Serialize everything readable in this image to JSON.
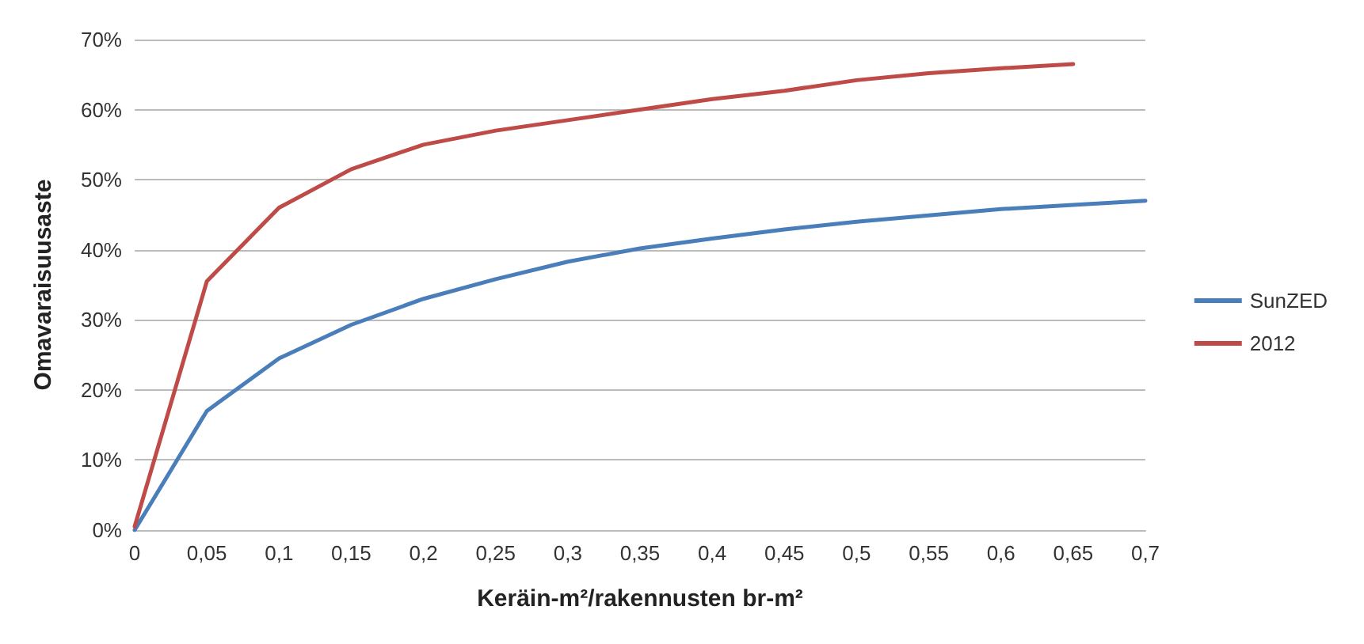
{
  "chart_data": {
    "type": "line",
    "xlabel": "Keräin-m²/rakennusten br-m²",
    "ylabel": "Omavaraisuusaste",
    "categories": [
      "0",
      "0,05",
      "0,1",
      "0,15",
      "0,2",
      "0,25",
      "0,3",
      "0,35",
      "0,4",
      "0,45",
      "0,5",
      "0,55",
      "0,6",
      "0,65",
      "0,7"
    ],
    "series": [
      {
        "name": "SunZED",
        "color": "#4a7ebb",
        "values": [
          0,
          17,
          24.5,
          29.3,
          33,
          35.8,
          38.3,
          40.2,
          41.6,
          42.9,
          44,
          44.9,
          45.8,
          46.4,
          47
        ]
      },
      {
        "name": "2012",
        "color": "#be4b48",
        "values": [
          0.5,
          35.5,
          46,
          51.5,
          55,
          57,
          58.5,
          60,
          61.5,
          62.7,
          64.2,
          65.2,
          65.9,
          66.5,
          null
        ]
      }
    ],
    "ylim": [
      0,
      70
    ],
    "yticks": [
      {
        "value": 0,
        "label": "0%"
      },
      {
        "value": 10,
        "label": "10%"
      },
      {
        "value": 20,
        "label": "20%"
      },
      {
        "value": 30,
        "label": "30%"
      },
      {
        "value": 40,
        "label": "40%"
      },
      {
        "value": 50,
        "label": "50%"
      },
      {
        "value": 60,
        "label": "60%"
      },
      {
        "value": 70,
        "label": "70%"
      }
    ],
    "grid": "y",
    "legend": "right",
    "marker": "none",
    "line_style": "solid"
  }
}
